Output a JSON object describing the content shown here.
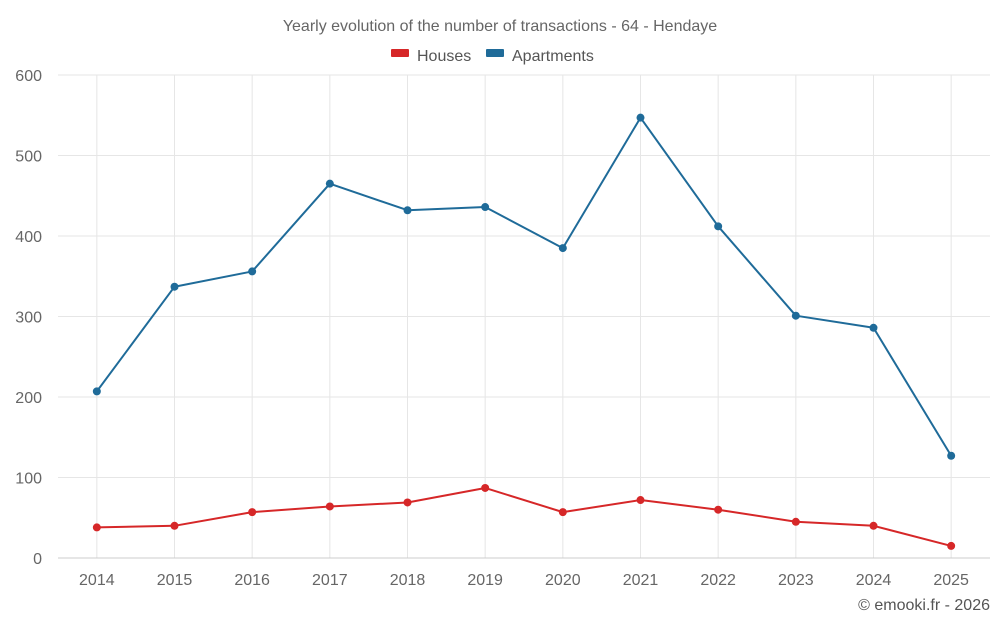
{
  "chart_data": {
    "type": "line",
    "title": "Yearly evolution of the number of transactions - 64 - Hendaye",
    "categories": [
      "2014",
      "2015",
      "2016",
      "2017",
      "2018",
      "2019",
      "2020",
      "2021",
      "2022",
      "2023",
      "2024",
      "2025"
    ],
    "series": [
      {
        "name": "Houses",
        "color": "#d62728",
        "values": [
          38,
          40,
          57,
          64,
          69,
          87,
          57,
          72,
          60,
          45,
          40,
          15
        ]
      },
      {
        "name": "Apartments",
        "color": "#1f6b99",
        "values": [
          207,
          337,
          356,
          465,
          432,
          436,
          385,
          547,
          412,
          301,
          286,
          127
        ]
      }
    ],
    "ylim": [
      0,
      600
    ],
    "yticks": [
      0,
      100,
      200,
      300,
      400,
      500,
      600
    ],
    "xlabel": "",
    "ylabel": "",
    "grid": true,
    "legend": "top-center",
    "credit": "© emooki.fr - 2026"
  }
}
